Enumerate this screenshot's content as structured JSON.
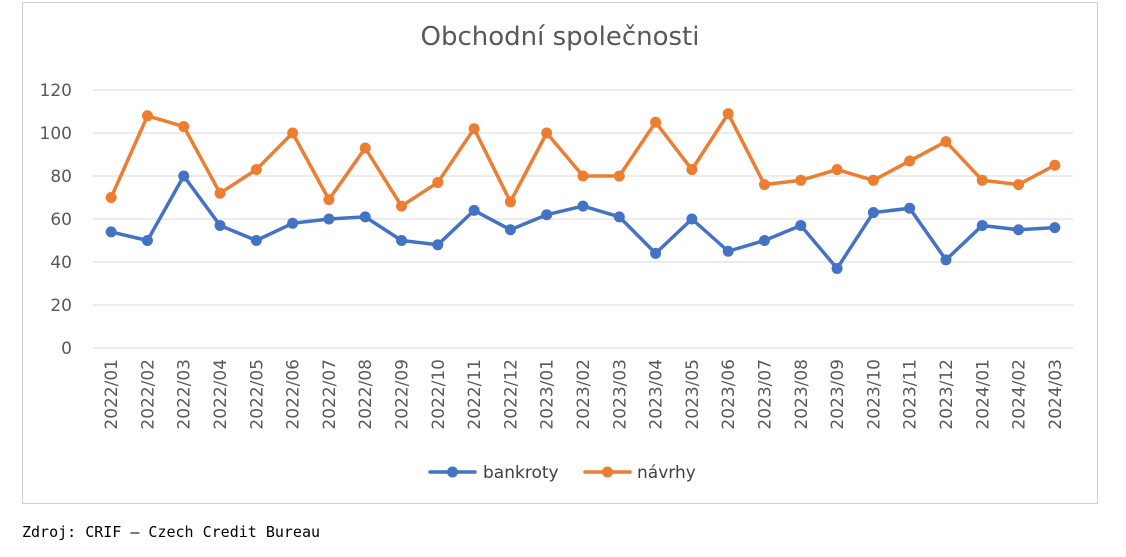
{
  "chart_data": {
    "type": "line",
    "title": "Obchodní společnosti",
    "categories": [
      "2022/01",
      "2022/02",
      "2022/03",
      "2022/04",
      "2022/05",
      "2022/06",
      "2022/07",
      "2022/08",
      "2022/09",
      "2022/10",
      "2022/11",
      "2022/12",
      "2023/01",
      "2023/02",
      "2023/03",
      "2023/04",
      "2023/05",
      "2023/06",
      "2023/07",
      "2023/08",
      "2023/09",
      "2023/10",
      "2023/11",
      "2023/12",
      "2024/01",
      "2024/02",
      "2024/03"
    ],
    "series": [
      {
        "name": "bankroty",
        "color": "#4472C4",
        "values": [
          54,
          50,
          80,
          57,
          50,
          58,
          60,
          61,
          50,
          48,
          64,
          55,
          62,
          66,
          61,
          44,
          60,
          45,
          50,
          57,
          37,
          63,
          65,
          41,
          57,
          55,
          56
        ]
      },
      {
        "name": "návrhy",
        "color": "#ED7D31",
        "values": [
          70,
          108,
          103,
          72,
          83,
          100,
          69,
          93,
          66,
          77,
          102,
          68,
          100,
          80,
          80,
          105,
          83,
          109,
          76,
          78,
          83,
          78,
          87,
          96,
          78,
          76,
          85
        ]
      }
    ],
    "ylim": [
      0,
      120
    ],
    "yticks": [
      "0",
      "20",
      "40",
      "60",
      "80",
      "100",
      "120"
    ],
    "grid": true,
    "legend_position": "bottom",
    "xlabel": "",
    "ylabel": ""
  },
  "source_note": "Zdroj: CRIF – Czech Credit Bureau",
  "colors": {
    "grid": "#d9d9d9",
    "axis_text": "#595959"
  }
}
